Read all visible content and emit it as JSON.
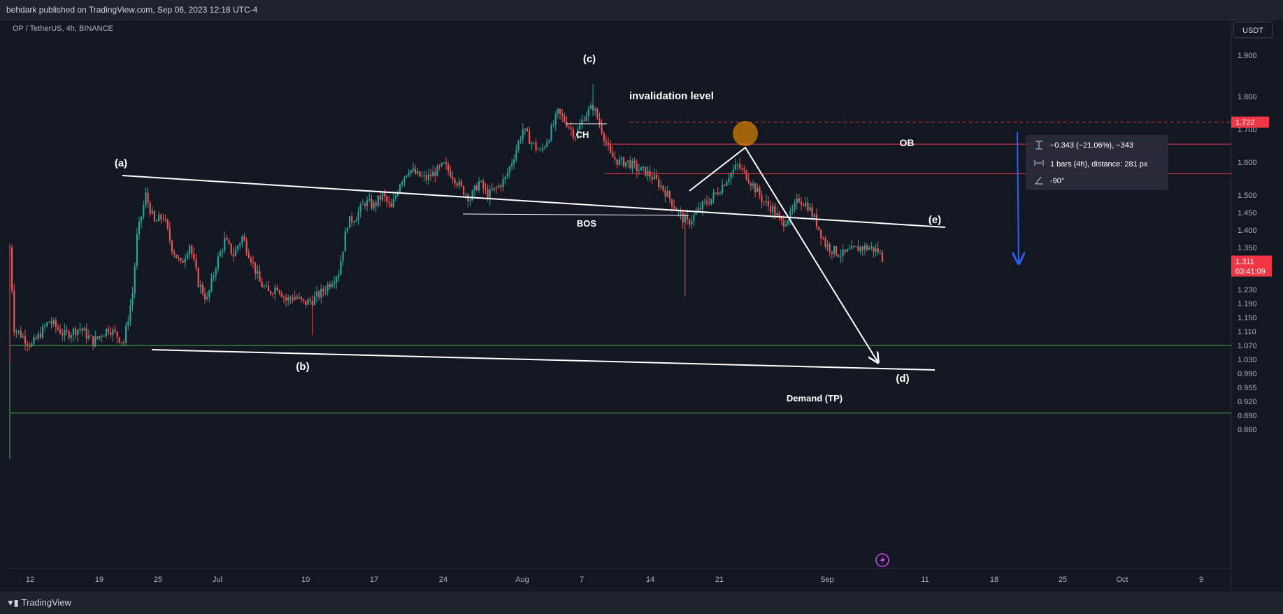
{
  "header": {
    "publish_line": "behdark published on TradingView.com, Sep 06, 2023 12:18 UTC-4"
  },
  "footer": {
    "brand": "TradingView",
    "brand_icon": "tradingview-logo-icon"
  },
  "symbol": {
    "label": "OP / TetherUS, 4h, BINANCE"
  },
  "currency_button": "USDT",
  "colors": {
    "up": "#26a69a",
    "down": "#ef5350",
    "bg": "#131722",
    "invalidation": "#f23645",
    "demand": "#4caf50",
    "arrow": "#2962ff",
    "ob_circle": "#ff9800"
  },
  "chart_data": {
    "type": "candlestick",
    "interval": "4h",
    "y_range": [
      0.86,
      1.93
    ],
    "y_ticks": [
      "1.900",
      "1.800",
      "1.700",
      "1.600",
      "1.500",
      "1.450",
      "1.400",
      "1.350",
      "1.230",
      "1.190",
      "1.150",
      "1.110",
      "1.070",
      "1.030",
      "0.990",
      "0.955",
      "0.920",
      "0.890",
      "0.860"
    ],
    "x_ticks": [
      "12",
      "19",
      "25",
      "Jul",
      "10",
      "17",
      "24",
      "Aug",
      "7",
      "14",
      "21",
      "Sep",
      "11",
      "18",
      "25",
      "Oct",
      "9"
    ],
    "price_path": [
      [
        0,
        1.35
      ],
      [
        2,
        1.12
      ],
      [
        10,
        1.07
      ],
      [
        18,
        1.14
      ],
      [
        25,
        1.1
      ],
      [
        32,
        1.12
      ],
      [
        38,
        1.08
      ],
      [
        45,
        1.12
      ],
      [
        52,
        1.08
      ],
      [
        56,
        1.22
      ],
      [
        58,
        1.38
      ],
      [
        62,
        1.5
      ],
      [
        66,
        1.42
      ],
      [
        70,
        1.44
      ],
      [
        74,
        1.35
      ],
      [
        78,
        1.3
      ],
      [
        82,
        1.36
      ],
      [
        86,
        1.25
      ],
      [
        90,
        1.2
      ],
      [
        94,
        1.3
      ],
      [
        98,
        1.37
      ],
      [
        102,
        1.33
      ],
      [
        106,
        1.38
      ],
      [
        110,
        1.32
      ],
      [
        114,
        1.25
      ],
      [
        118,
        1.22
      ],
      [
        122,
        1.24
      ],
      [
        126,
        1.2
      ],
      [
        130,
        1.21
      ],
      [
        134,
        1.19
      ],
      [
        138,
        1.2
      ],
      [
        142,
        1.22
      ],
      [
        146,
        1.25
      ],
      [
        150,
        1.28
      ],
      [
        154,
        1.42
      ],
      [
        158,
        1.44
      ],
      [
        162,
        1.48
      ],
      [
        166,
        1.47
      ],
      [
        170,
        1.5
      ],
      [
        174,
        1.46
      ],
      [
        178,
        1.54
      ],
      [
        182,
        1.58
      ],
      [
        186,
        1.56
      ],
      [
        190,
        1.55
      ],
      [
        194,
        1.57
      ],
      [
        198,
        1.59
      ],
      [
        202,
        1.56
      ],
      [
        206,
        1.52
      ],
      [
        210,
        1.49
      ],
      [
        214,
        1.54
      ],
      [
        218,
        1.5
      ],
      [
        222,
        1.52
      ],
      [
        226,
        1.55
      ],
      [
        230,
        1.62
      ],
      [
        234,
        1.7
      ],
      [
        238,
        1.66
      ],
      [
        242,
        1.63
      ],
      [
        246,
        1.68
      ],
      [
        250,
        1.75
      ],
      [
        254,
        1.72
      ],
      [
        258,
        1.68
      ],
      [
        262,
        1.74
      ],
      [
        266,
        1.77
      ],
      [
        270,
        1.7
      ],
      [
        274,
        1.62
      ],
      [
        278,
        1.6
      ],
      [
        282,
        1.6
      ],
      [
        286,
        1.58
      ],
      [
        290,
        1.57
      ],
      [
        294,
        1.55
      ],
      [
        298,
        1.52
      ],
      [
        302,
        1.48
      ],
      [
        306,
        1.44
      ],
      [
        309,
        1.42
      ],
      [
        312,
        1.44
      ],
      [
        316,
        1.47
      ],
      [
        320,
        1.49
      ],
      [
        324,
        1.52
      ],
      [
        328,
        1.56
      ],
      [
        332,
        1.59
      ],
      [
        336,
        1.56
      ],
      [
        340,
        1.52
      ],
      [
        344,
        1.48
      ],
      [
        348,
        1.46
      ],
      [
        352,
        1.42
      ],
      [
        356,
        1.44
      ],
      [
        360,
        1.49
      ],
      [
        364,
        1.47
      ],
      [
        368,
        1.42
      ],
      [
        372,
        1.36
      ],
      [
        376,
        1.34
      ],
      [
        380,
        1.33
      ],
      [
        384,
        1.34
      ],
      [
        388,
        1.35
      ],
      [
        392,
        1.35
      ],
      [
        396,
        1.34
      ],
      [
        398,
        1.32
      ]
    ],
    "spikes": [
      {
        "label": "Aug 17 wick low",
        "value": 1.21
      },
      {
        "label": "(c) high",
        "value": 1.83
      },
      {
        "label": "(b) low",
        "value": 1.1
      }
    ],
    "current_price": "1.311",
    "countdown": "03:41:09",
    "invalidation_price": "1.722",
    "annotations": {
      "wave_a": "(a)",
      "wave_b": "(b)",
      "wave_c": "(c)",
      "wave_d": "(d)",
      "wave_e": "(e)",
      "invalidation": "invalidation level",
      "ch": "CH",
      "bos": "BOS",
      "ob": "OB",
      "demand": "Demand (TP)"
    },
    "levels": [
      {
        "name": "invalidation",
        "value": 1.722,
        "style": "dashed"
      },
      {
        "name": "ob-top",
        "value": 1.655
      },
      {
        "name": "ob-bottom",
        "value": 1.565
      },
      {
        "name": "demand-top",
        "value": 1.07
      },
      {
        "name": "demand-bottom",
        "value": 0.895
      }
    ],
    "measure_tooltip": {
      "line1": "−0.343 (−21.06%), −343",
      "line2": "1 bars (4h), distance: 281 px",
      "line3": "-90°"
    }
  }
}
